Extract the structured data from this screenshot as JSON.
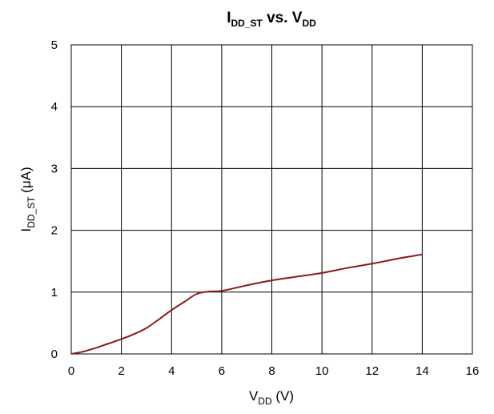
{
  "chart_data": {
    "type": "line",
    "title": {
      "main": "I",
      "main_sub": "DD_ST",
      "mid": " vs. V",
      "mid_sub": "DD"
    },
    "xlabel": {
      "main": "V",
      "sub": "DD",
      "rest": " (V)"
    },
    "ylabel": {
      "main": "I",
      "sub": "DD_ST",
      "rest": " (μA)"
    },
    "xlim": [
      0,
      16
    ],
    "ylim": [
      0,
      5
    ],
    "x_ticks": [
      "0",
      "2",
      "4",
      "6",
      "8",
      "10",
      "12",
      "14",
      "16"
    ],
    "y_ticks": [
      "0",
      "1",
      "2",
      "3",
      "4",
      "5"
    ],
    "grid": true,
    "line_color": "#8b1a1a",
    "series": [
      {
        "x": [
          0,
          0.5,
          1,
          1.5,
          2,
          2.5,
          3,
          3.5,
          4,
          4.5,
          5,
          5.5,
          6,
          7,
          8,
          9,
          10,
          11,
          12,
          13,
          14
        ],
        "y": [
          0,
          0.04,
          0.1,
          0.17,
          0.24,
          0.32,
          0.42,
          0.56,
          0.71,
          0.84,
          0.97,
          1.01,
          1.02,
          1.11,
          1.19,
          1.25,
          1.31,
          1.39,
          1.46,
          1.54,
          1.61
        ]
      }
    ]
  }
}
